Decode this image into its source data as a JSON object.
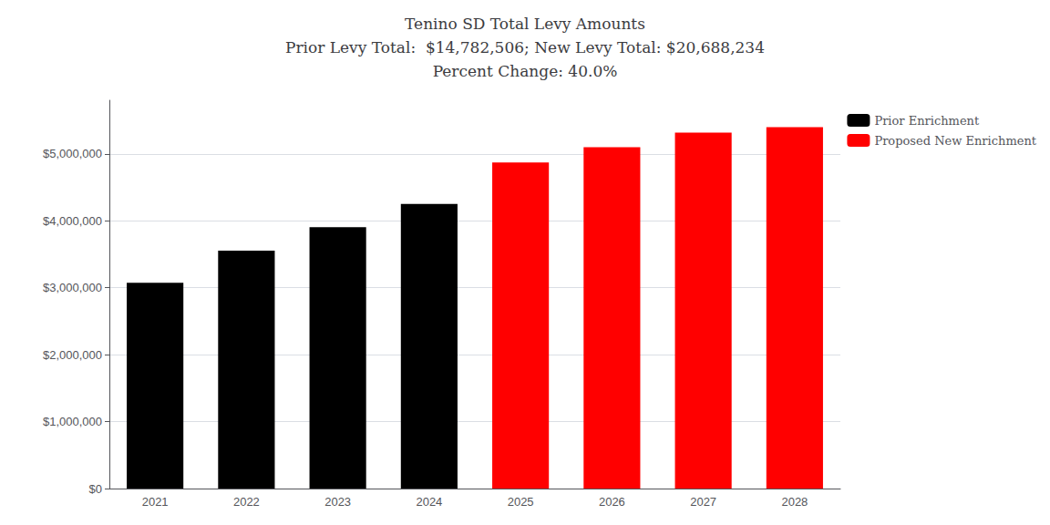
{
  "chart_data": {
    "type": "bar",
    "title": "Tenino SD Total Levy Amounts\nPrior Levy Total:  $14,782,506; New Levy Total: $20,688,234\nPercent Change: 40.0%",
    "categories": [
      "2021",
      "2022",
      "2023",
      "2024",
      "2025",
      "2026",
      "2027",
      "2028"
    ],
    "series": [
      {
        "name": "Prior Enrichment",
        "color": "#000000",
        "values": [
          3075000,
          3552506,
          3905000,
          4250000,
          null,
          null,
          null,
          null
        ]
      },
      {
        "name": "Proposed New Enrichment",
        "color": "#ff0000",
        "values": [
          null,
          null,
          null,
          null,
          4872234,
          5100000,
          5316000,
          5400000
        ]
      }
    ],
    "ylim": [
      0,
      5800000
    ],
    "yticks": [
      {
        "value": 0,
        "label": "$0"
      },
      {
        "value": 1000000,
        "label": "$1,000,000"
      },
      {
        "value": 2000000,
        "label": "$2,000,000"
      },
      {
        "value": 3000000,
        "label": "$3,000,000"
      },
      {
        "value": 4000000,
        "label": "$4,000,000"
      },
      {
        "value": 5000000,
        "label": "$5,000,000"
      }
    ],
    "grid": true,
    "legend": "right"
  }
}
